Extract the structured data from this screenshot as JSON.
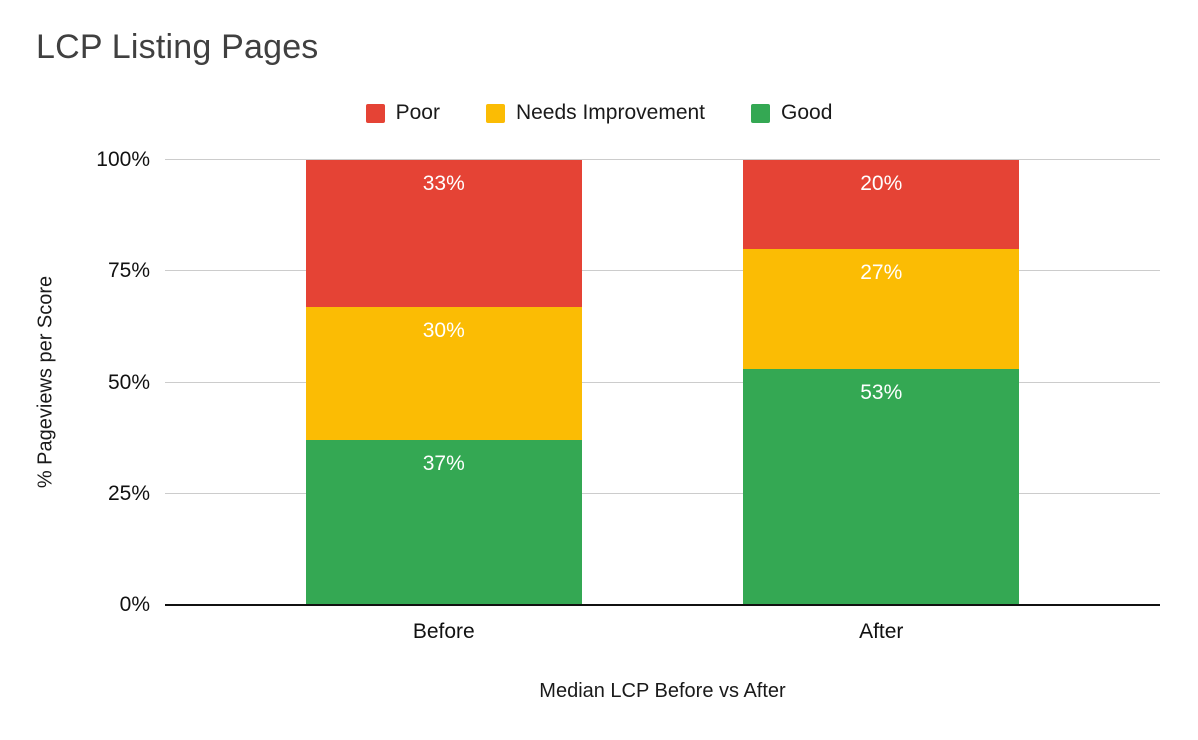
{
  "chart_data": {
    "type": "bar",
    "stacked": true,
    "title": "LCP Listing Pages",
    "xlabel": "Median LCP Before vs After",
    "ylabel": "% Pageviews per Score",
    "categories": [
      "Before",
      "After"
    ],
    "series": [
      {
        "name": "Poor",
        "color": "#E54335",
        "values": [
          33,
          20
        ]
      },
      {
        "name": "Needs Improvement",
        "color": "#FBBC04",
        "values": [
          30,
          27
        ]
      },
      {
        "name": "Good",
        "color": "#34A853",
        "values": [
          37,
          53
        ]
      }
    ],
    "ylim": [
      0,
      100
    ],
    "yticks": [
      "0%",
      "25%",
      "50%",
      "75%",
      "100%"
    ],
    "grid": true,
    "legend_position": "top",
    "data_label_style": {
      "position": "inside-top",
      "color": "#ffffff",
      "suffix": "%"
    },
    "gridline_color": "#cccccc",
    "axis_line_color": "#111111",
    "title_color": "#404040"
  }
}
